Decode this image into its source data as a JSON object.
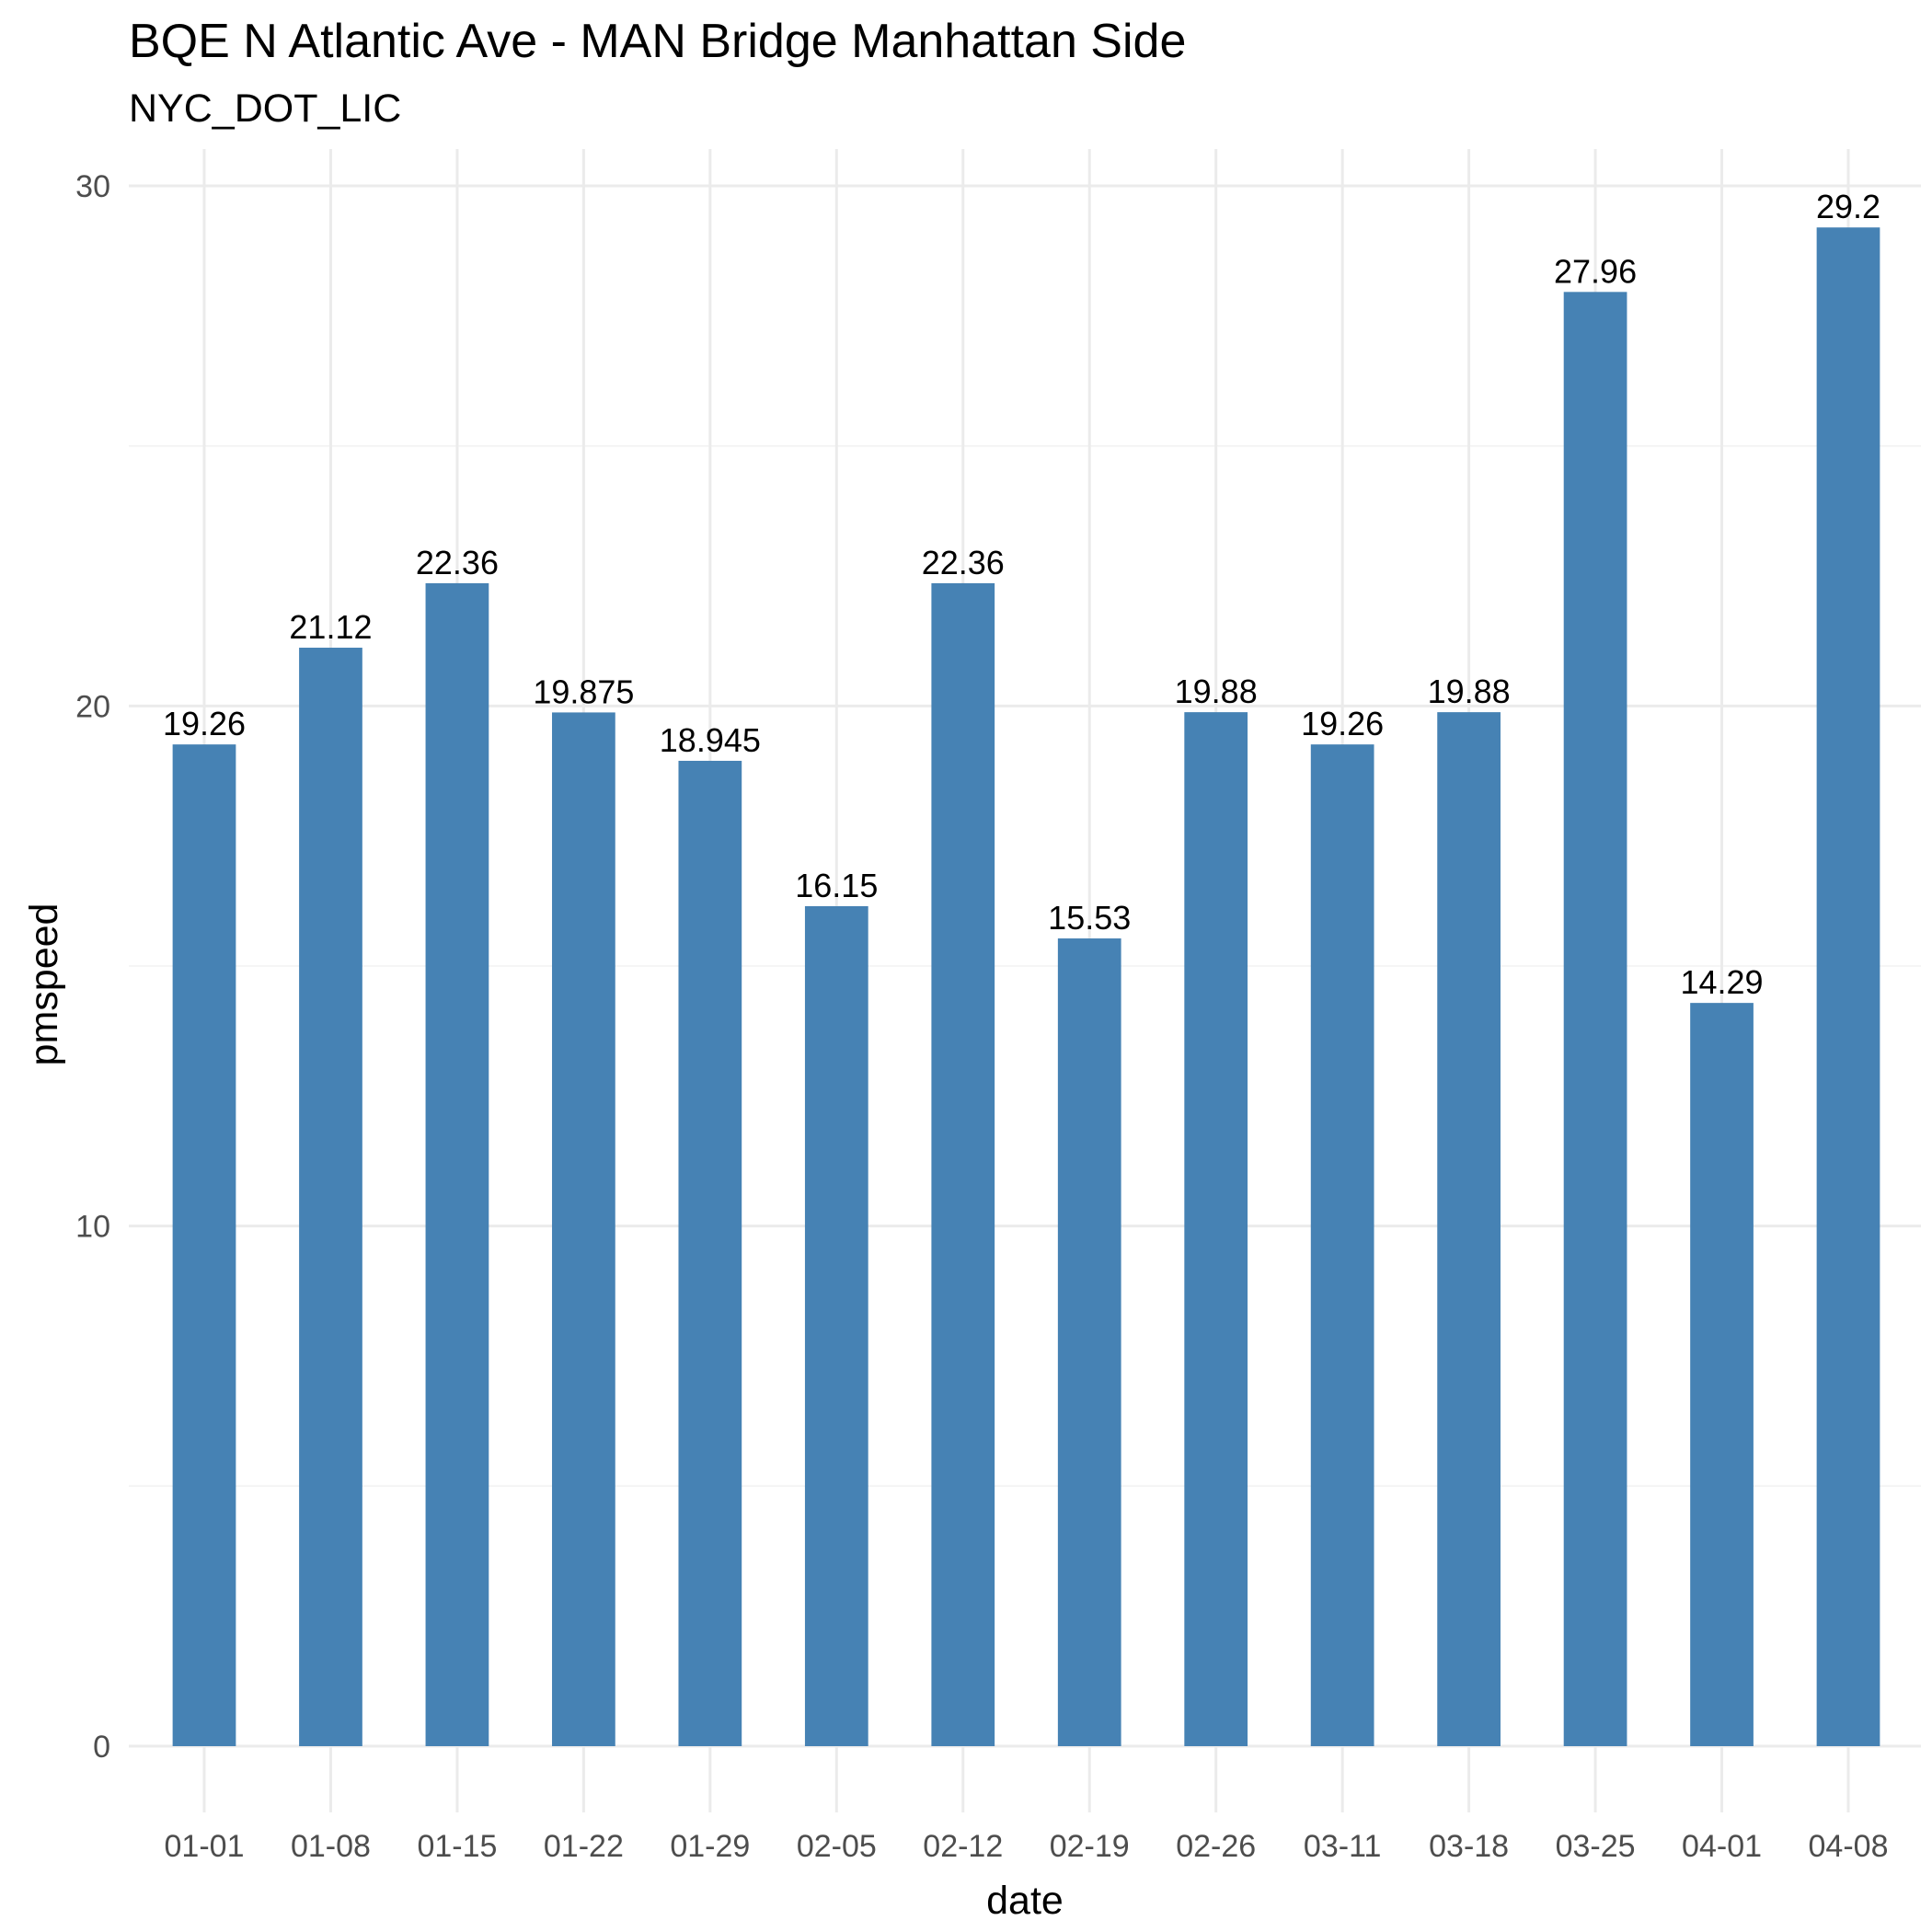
{
  "chart_data": {
    "type": "bar",
    "title": "BQE N Atlantic Ave - MAN Bridge Manhattan Side",
    "subtitle": "NYC_DOT_LIC",
    "xlabel": "date",
    "ylabel": "pmspeed",
    "ylim": [
      0,
      30
    ],
    "y_ticks": [
      0,
      10,
      20,
      30
    ],
    "grid": true,
    "legend": "none",
    "bar_color": "#4682B4",
    "categories": [
      "01-01",
      "01-08",
      "01-15",
      "01-22",
      "01-29",
      "02-05",
      "02-12",
      "02-19",
      "02-26",
      "03-11",
      "03-18",
      "03-25",
      "04-01",
      "04-08"
    ],
    "values": [
      19.26,
      21.12,
      22.36,
      19.875,
      18.945,
      16.15,
      22.36,
      15.53,
      19.88,
      19.26,
      19.88,
      27.96,
      14.29,
      29.2
    ],
    "data_labels": [
      "19.26",
      "21.12",
      "22.36",
      "19.875",
      "18.945",
      "16.15",
      "22.36",
      "15.53",
      "19.88",
      "19.26",
      "19.88",
      "27.96",
      "14.29",
      "29.2"
    ]
  }
}
